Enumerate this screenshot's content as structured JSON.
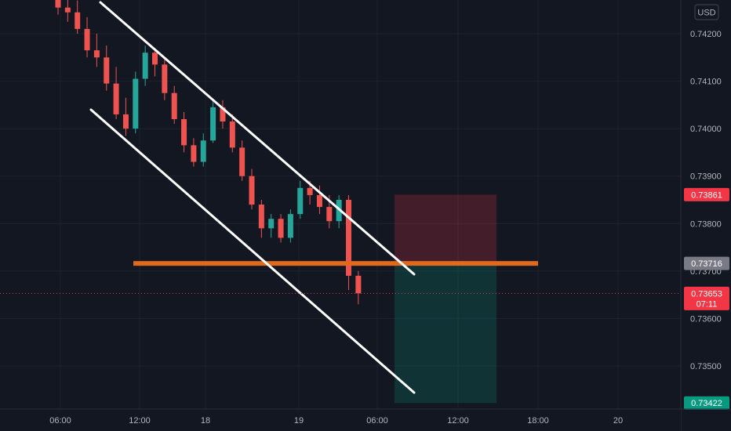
{
  "chart_data": {
    "type": "candlestick",
    "symbol_currency": "USD",
    "y_axis": {
      "ticks": [
        "0.74200",
        "0.74100",
        "0.74000",
        "0.73900",
        "0.73800",
        "0.73700",
        "0.73600",
        "0.73500"
      ],
      "ylim": [
        0.7341,
        0.7428
      ]
    },
    "x_axis": {
      "ticks": [
        "06:00",
        "12:00",
        "18",
        "19",
        "06:00",
        "12:00",
        "18:00",
        "20"
      ]
    },
    "price_badges": {
      "stop": {
        "value": "0.73861",
        "color": "#f23645"
      },
      "entry": {
        "value": "0.73716",
        "color": "#787b86"
      },
      "last": {
        "value": "0.73653",
        "countdown": "07:11",
        "color": "#f23645"
      },
      "target": {
        "value": "0.73422",
        "color": "#089981"
      }
    },
    "support_level": {
      "value": 0.73716,
      "color": "#e0691b"
    },
    "channel_lines": [
      {
        "name": "upper",
        "from": [
          "t0.0",
          0.7428
        ],
        "to": [
          "t26.7",
          0.737
        ]
      },
      {
        "name": "lower",
        "from": [
          "t1.8",
          0.7404
        ],
        "to": [
          "t26.7",
          0.7344
        ]
      }
    ],
    "position_box": {
      "side": "short",
      "entry": 0.73716,
      "stop": 0.73861,
      "target": 0.73422,
      "risk_color": "#f23645",
      "reward_color": "#089981"
    },
    "candles": [
      {
        "o": 0.74275,
        "h": 0.7429,
        "l": 0.7424,
        "c": 0.74255
      },
      {
        "o": 0.74255,
        "h": 0.7428,
        "l": 0.74225,
        "c": 0.74245
      },
      {
        "o": 0.74245,
        "h": 0.7427,
        "l": 0.742,
        "c": 0.7421
      },
      {
        "o": 0.7421,
        "h": 0.74235,
        "l": 0.7415,
        "c": 0.74165
      },
      {
        "o": 0.74165,
        "h": 0.742,
        "l": 0.7413,
        "c": 0.7415
      },
      {
        "o": 0.7415,
        "h": 0.74175,
        "l": 0.7408,
        "c": 0.74095
      },
      {
        "o": 0.74095,
        "h": 0.7413,
        "l": 0.7402,
        "c": 0.7403
      },
      {
        "o": 0.7403,
        "h": 0.74065,
        "l": 0.73985,
        "c": 0.74
      },
      {
        "o": 0.74,
        "h": 0.7412,
        "l": 0.7399,
        "c": 0.74105
      },
      {
        "o": 0.74105,
        "h": 0.74175,
        "l": 0.7409,
        "c": 0.7416
      },
      {
        "o": 0.7416,
        "h": 0.7417,
        "l": 0.7411,
        "c": 0.74135
      },
      {
        "o": 0.74135,
        "h": 0.7415,
        "l": 0.7406,
        "c": 0.74075
      },
      {
        "o": 0.74075,
        "h": 0.7409,
        "l": 0.7401,
        "c": 0.7402
      },
      {
        "o": 0.7402,
        "h": 0.74035,
        "l": 0.7395,
        "c": 0.73965
      },
      {
        "o": 0.73965,
        "h": 0.7398,
        "l": 0.7392,
        "c": 0.7393
      },
      {
        "o": 0.7393,
        "h": 0.7399,
        "l": 0.7392,
        "c": 0.73975
      },
      {
        "o": 0.73975,
        "h": 0.7406,
        "l": 0.7397,
        "c": 0.74045
      },
      {
        "o": 0.74045,
        "h": 0.7406,
        "l": 0.74,
        "c": 0.74015
      },
      {
        "o": 0.74015,
        "h": 0.7403,
        "l": 0.7395,
        "c": 0.7396
      },
      {
        "o": 0.7396,
        "h": 0.73975,
        "l": 0.7389,
        "c": 0.739
      },
      {
        "o": 0.739,
        "h": 0.73915,
        "l": 0.7383,
        "c": 0.7384
      },
      {
        "o": 0.7384,
        "h": 0.7385,
        "l": 0.7377,
        "c": 0.7379
      },
      {
        "o": 0.7379,
        "h": 0.7382,
        "l": 0.7377,
        "c": 0.7381
      },
      {
        "o": 0.7381,
        "h": 0.7382,
        "l": 0.7376,
        "c": 0.7377
      },
      {
        "o": 0.7377,
        "h": 0.7383,
        "l": 0.7376,
        "c": 0.7382
      },
      {
        "o": 0.7382,
        "h": 0.7389,
        "l": 0.7381,
        "c": 0.73875
      },
      {
        "o": 0.73875,
        "h": 0.7389,
        "l": 0.7384,
        "c": 0.7386
      },
      {
        "o": 0.7386,
        "h": 0.7388,
        "l": 0.7382,
        "c": 0.73835
      },
      {
        "o": 0.73835,
        "h": 0.7386,
        "l": 0.7379,
        "c": 0.73805
      },
      {
        "o": 0.73805,
        "h": 0.7386,
        "l": 0.7379,
        "c": 0.7385
      },
      {
        "o": 0.7385,
        "h": 0.7386,
        "l": 0.7366,
        "c": 0.7369
      },
      {
        "o": 0.7369,
        "h": 0.737,
        "l": 0.7363,
        "c": 0.73653
      }
    ]
  }
}
